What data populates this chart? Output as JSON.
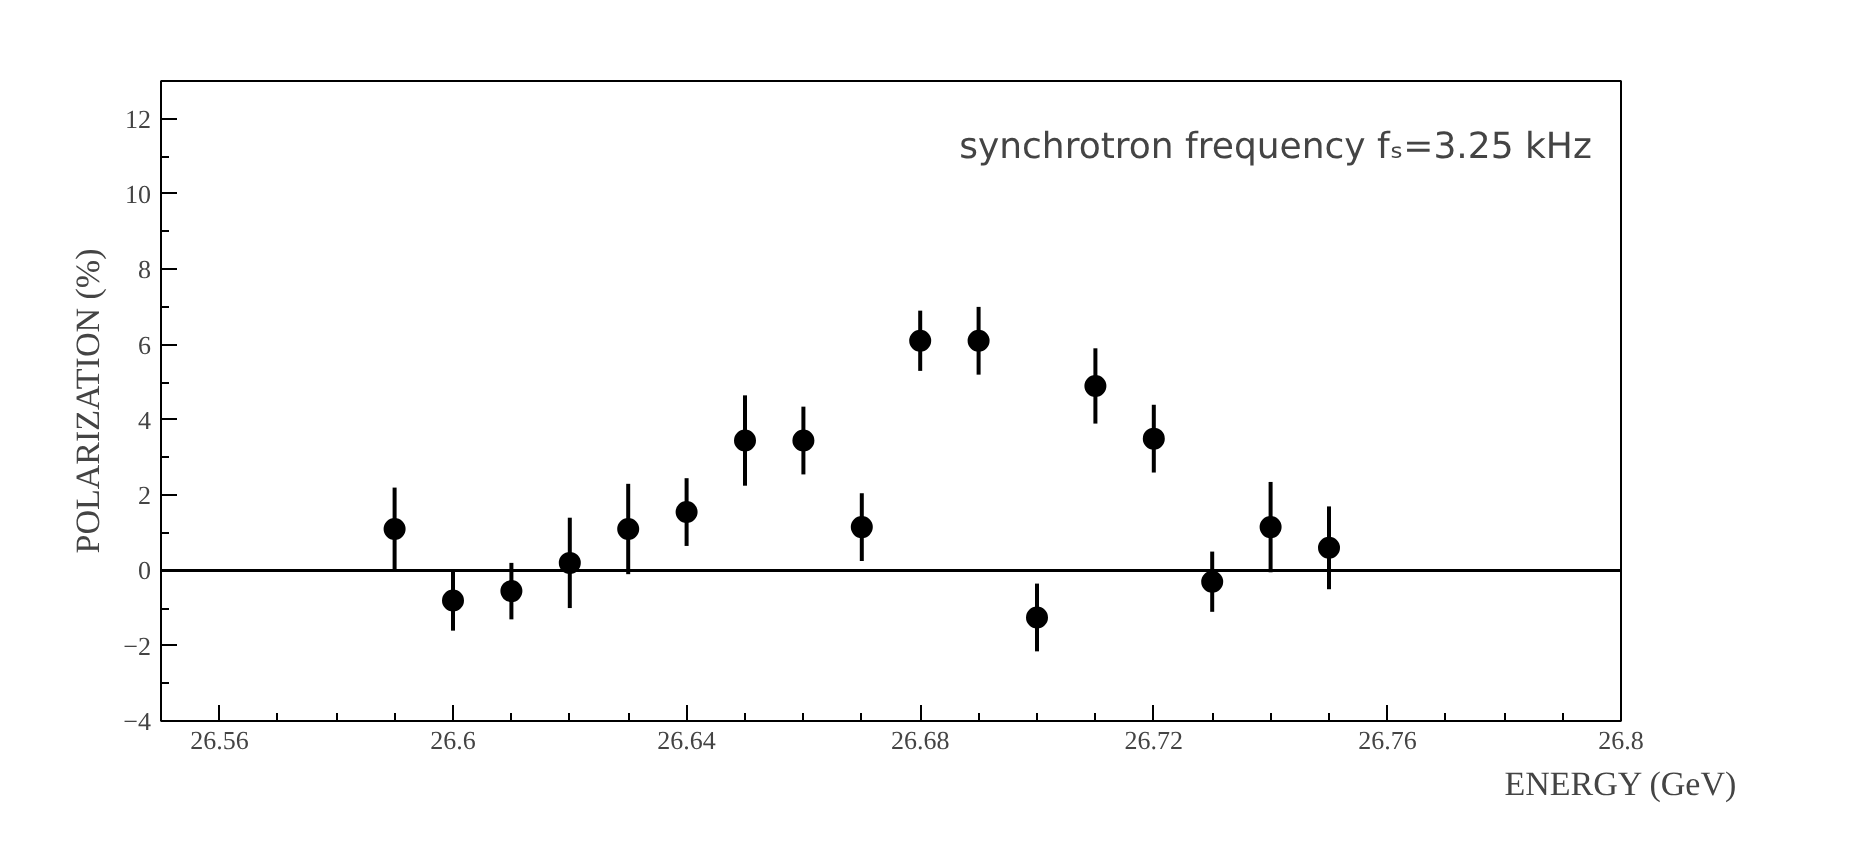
{
  "chart_data": {
    "type": "scatter",
    "xlabel": "ENERGY (GeV)",
    "ylabel": "POLARIZATION (%)",
    "annotations": [
      "synchrotron frequency fₛ=3.25 kHz"
    ],
    "x": [
      26.59,
      26.6,
      26.61,
      26.62,
      26.63,
      26.64,
      26.65,
      26.66,
      26.67,
      26.68,
      26.69,
      26.7,
      26.71,
      26.72,
      26.73,
      26.74,
      26.75
    ],
    "values": [
      1.1,
      -0.8,
      -0.55,
      0.2,
      1.1,
      1.55,
      3.45,
      3.45,
      1.15,
      6.1,
      6.1,
      -1.25,
      4.9,
      3.5,
      -0.3,
      1.15,
      0.6
    ],
    "errors": [
      1.1,
      0.8,
      0.75,
      1.2,
      1.2,
      0.9,
      1.2,
      0.9,
      0.9,
      0.8,
      0.9,
      0.9,
      1.0,
      0.9,
      0.8,
      1.2,
      1.1
    ],
    "color": "#000000",
    "marker": "circle",
    "xlim": [
      26.55,
      26.8
    ],
    "xticks": [
      26.56,
      26.6,
      26.64,
      26.68,
      26.72,
      26.76,
      26.8
    ],
    "ylim": [
      -4,
      13
    ],
    "yticks": [
      -4,
      -2,
      0,
      2,
      4,
      6,
      8,
      10,
      12
    ],
    "ref_lines": [
      {
        "axis": "y",
        "value": 0,
        "color": "#000000"
      }
    ],
    "grid": false
  }
}
